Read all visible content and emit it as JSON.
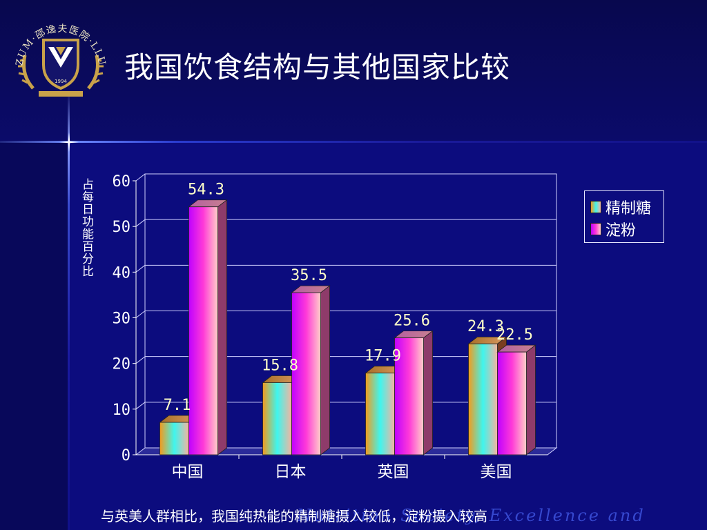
{
  "slide": {
    "title": "我国饮食结构与其他国家比较",
    "caption": "与英美人群相比，我国纯热能的精制糖摄入较低，淀粉摄入较高",
    "background_watermark": "Nutrition Society, Excellence and",
    "logo": {
      "icon": "hospital-emblem-icon",
      "text": "ZUM·邵逸夫医院·LLU",
      "year": "1994"
    }
  },
  "colors": {
    "background": "#0c0c7e",
    "series_1_gradient": [
      "#f39a1c",
      "#3ff5ee",
      "#f6b3a0"
    ],
    "series_2_gradient": [
      "#c000ff",
      "#ff3ad8",
      "#ffd0c8"
    ],
    "text": "#ffffff",
    "data_label": "#ffffc8"
  },
  "chart_data": {
    "type": "bar",
    "style": "3d-clustered",
    "categories": [
      "中国",
      "日本",
      "英国",
      "美国"
    ],
    "series": [
      {
        "name": "精制糖",
        "values": [
          7.1,
          15.8,
          17.9,
          24.3
        ]
      },
      {
        "name": "淀粉",
        "values": [
          54.3,
          35.5,
          25.6,
          22.5
        ]
      }
    ],
    "data_labels": [
      [
        "7.1",
        "15.8",
        "17.9",
        "24.3"
      ],
      [
        "54.3",
        "35.5",
        "25.6",
        "22.5"
      ]
    ],
    "ylabel": "占每日功能百分比",
    "xlabel": "",
    "ylim": [
      0,
      60
    ],
    "yticks": [
      0,
      10,
      20,
      30,
      40,
      50,
      60
    ],
    "ytick_labels": [
      "0",
      "10",
      "20",
      "30",
      "40",
      "50",
      "60"
    ],
    "grid": true,
    "legend": "right"
  }
}
